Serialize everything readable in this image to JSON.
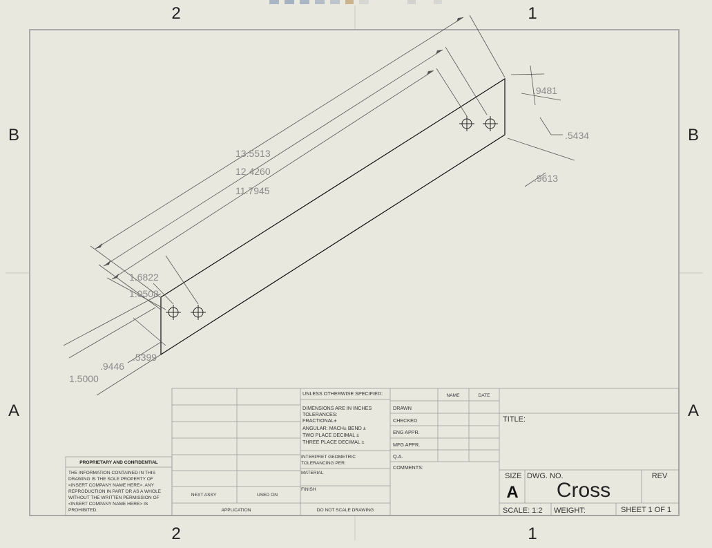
{
  "zones": {
    "top_left": "2",
    "top_right": "1",
    "bottom_left": "2",
    "bottom_right": "1",
    "left_upper": "B",
    "left_lower": "A",
    "right_upper": "B",
    "right_lower": "A"
  },
  "dimensions": {
    "d1": "13.5513",
    "d2": "12.4260",
    "d3": "11.7945",
    "d4": "1.6822",
    "d5": "1.0508",
    "d6": ".9446",
    "d7": ".5399",
    "d8": "1.5000",
    "d9": ".9481",
    "d10": ".5434",
    "d11": ".9613"
  },
  "title_block": {
    "unless": "UNLESS OTHERWISE SPECIFIED:",
    "dims_inches": "DIMENSIONS ARE IN INCHES",
    "tolerances": "TOLERANCES:",
    "fractional": "FRACTIONAL±",
    "angular": "ANGULAR: MACH±    BEND ±",
    "two_place": "TWO PLACE DECIMAL    ±",
    "three_place": "THREE PLACE DECIMAL  ±",
    "interpret1": "INTERPRET GEOMETRIC",
    "interpret2": "TOLERANCING PER:",
    "material": "MATERIAL",
    "finish": "FINISH",
    "do_not_scale": "DO NOT SCALE DRAWING",
    "next_assy": "NEXT ASSY",
    "used_on": "USED ON",
    "application": "APPLICATION",
    "name": "NAME",
    "date": "DATE",
    "drawn": "DRAWN",
    "checked": "CHECKED",
    "eng_appr": "ENG APPR.",
    "mfg_appr": "MFG APPR.",
    "qa": "Q.A.",
    "comments": "COMMENTS:",
    "title_label": "TITLE:",
    "size_label": "SIZE",
    "size_value": "A",
    "dwg_no_label": "DWG.  NO.",
    "dwg_no_value": "Cross",
    "rev_label": "REV",
    "scale": "SCALE: 1:2",
    "weight": "WEIGHT:",
    "sheet": "SHEET 1 OF 1"
  },
  "proprietary": {
    "heading": "PROPRIETARY AND CONFIDENTIAL",
    "lines": [
      "THE INFORMATION CONTAINED IN THIS",
      "DRAWING IS THE SOLE PROPERTY OF",
      "<INSERT COMPANY NAME HERE>.  ANY",
      "REPRODUCTION IN PART OR AS A WHOLE",
      "WITHOUT THE WRITTEN PERMISSION OF",
      "<INSERT COMPANY NAME HERE> IS",
      "PROHIBITED."
    ]
  }
}
